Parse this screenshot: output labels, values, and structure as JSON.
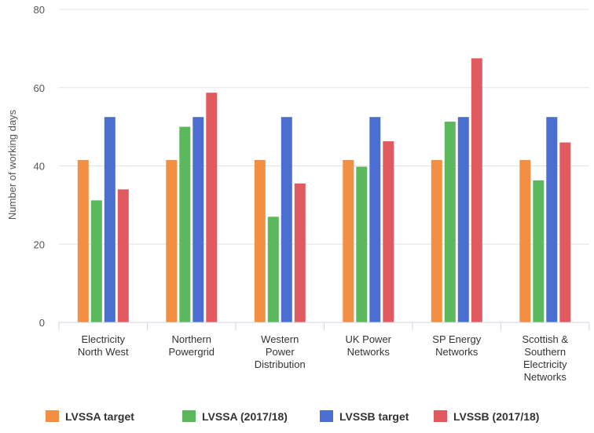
{
  "chart_data": {
    "type": "bar",
    "title": "",
    "xlabel": "",
    "ylabel": "Number of working days",
    "ylim": [
      0,
      80
    ],
    "yticks": [
      0,
      20,
      40,
      60,
      80
    ],
    "grid": true,
    "legend_position": "bottom",
    "categories": [
      [
        "Electricity",
        "North West"
      ],
      [
        "Northern",
        "Powergrid"
      ],
      [
        "Western",
        "Power",
        "Distribution"
      ],
      [
        "UK Power",
        "Networks"
      ],
      [
        "SP Energy",
        "Networks"
      ],
      [
        "Scottish &",
        "Southern",
        "Electricity",
        "Networks"
      ]
    ],
    "series": [
      {
        "name": "LVSSA target",
        "color": "#f28f43",
        "values": [
          41.5,
          41.5,
          41.5,
          41.5,
          41.5,
          41.5
        ]
      },
      {
        "name": "LVSSA (2017/18)",
        "color": "#5cb85c",
        "values": [
          31.2,
          50.0,
          27.0,
          39.8,
          51.3,
          36.3
        ]
      },
      {
        "name": "LVSSB target",
        "color": "#4a6fd0",
        "values": [
          52.5,
          52.5,
          52.5,
          52.5,
          52.5,
          52.5
        ]
      },
      {
        "name": "LVSSB (2017/18)",
        "color": "#e15a60",
        "values": [
          34.0,
          58.7,
          35.5,
          46.3,
          67.5,
          46.0
        ]
      }
    ]
  }
}
